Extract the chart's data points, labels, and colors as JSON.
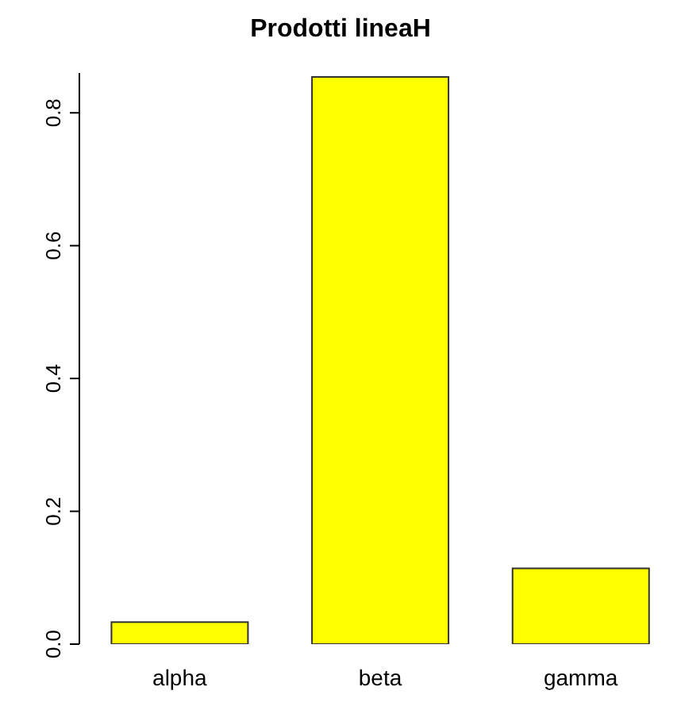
{
  "chart_data": {
    "type": "bar",
    "title": "Prodotti lineaH",
    "categories": [
      "alpha",
      "beta",
      "gamma"
    ],
    "values": [
      0.033,
      0.854,
      0.114
    ],
    "color": "#ffff00",
    "ylim": [
      0,
      0.86
    ],
    "yticks": [
      {
        "value": 0,
        "label": "0.0"
      },
      {
        "value": 0.2,
        "label": "0.2"
      },
      {
        "value": 0.4,
        "label": "0.4"
      },
      {
        "value": 0.6,
        "label": "0.6"
      },
      {
        "value": 0.8,
        "label": "0.8"
      }
    ],
    "grid": false
  }
}
